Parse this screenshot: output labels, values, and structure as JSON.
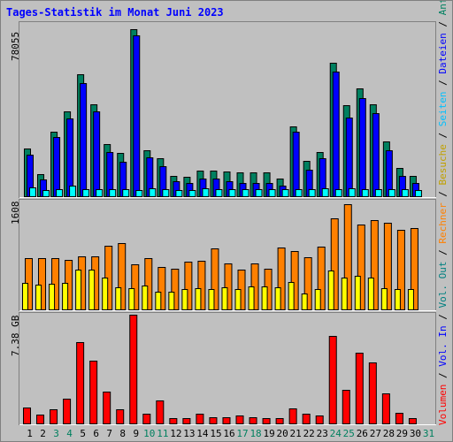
{
  "chart_data": {
    "type": "bar",
    "title": "Tages-Statistik im Monat Juni 2023",
    "categories": [
      "1",
      "2",
      "3",
      "4",
      "5",
      "6",
      "7",
      "8",
      "9",
      "10",
      "11",
      "12",
      "13",
      "14",
      "15",
      "16",
      "17",
      "18",
      "19",
      "20",
      "21",
      "22",
      "23",
      "24",
      "25",
      "26",
      "27",
      "28",
      "29",
      "30",
      "31"
    ],
    "weekend_days": [
      "3",
      "4",
      "10",
      "11",
      "17",
      "18",
      "24",
      "25",
      "31"
    ],
    "panels": [
      {
        "name": "hits",
        "y_max_label": "78055",
        "ylim": [
          0,
          78055
        ],
        "series": [
          {
            "name": "Anfragen",
            "color": "#008060",
            "values": [
              22000,
              10500,
              29500,
              38500,
              55500,
              42000,
              24000,
              20000,
              75500,
              21000,
              17500,
              9500,
              9000,
              12000,
              12000,
              11500,
              11000,
              11000,
              11000,
              8500,
              32000,
              16500,
              20500,
              60500,
              41500,
              49000,
              42000,
              25000,
              13000,
              9500,
              0
            ]
          },
          {
            "name": "Dateien",
            "color": "#0000ff",
            "values": [
              19000,
              8000,
              27000,
              35500,
              51500,
              38500,
              20500,
              16000,
              73000,
              18000,
              14000,
              7000,
              6500,
              8500,
              8500,
              7000,
              6500,
              6500,
              6500,
              5000,
              29500,
              12500,
              17500,
              56500,
              36000,
              44500,
              38000,
              21000,
              9500,
              6500,
              0
            ]
          },
          {
            "name": "Seiten",
            "color": "#00ffff",
            "values": [
              4500,
              3000,
              3500,
              5000,
              3500,
              3500,
              3500,
              3500,
              3000,
              4000,
              3500,
              3000,
              3000,
              4000,
              3500,
              3500,
              3500,
              3500,
              3500,
              3500,
              3500,
              3500,
              4000,
              3500,
              4000,
              3500,
              3500,
              3500,
              3500,
              3000,
              0
            ]
          }
        ]
      },
      {
        "name": "visits",
        "y_max_label": "1608",
        "ylim": [
          0,
          1608
        ],
        "series": [
          {
            "name": "Rechner",
            "color": "#ff8000",
            "values": [
              775,
              775,
              775,
              740,
              800,
              800,
              960,
              1000,
              675,
              775,
              635,
              620,
              720,
              735,
              910,
              695,
              600,
              690,
              615,
              930,
              880,
              785,
              935,
              1355,
              1570,
              1270,
              1330,
              1300,
              1190,
              1220,
              0
            ]
          },
          {
            "name": "Besuche",
            "color": "#ffff00",
            "values": [
              405,
              380,
              395,
              405,
              605,
              595,
              480,
              335,
              325,
              370,
              270,
              270,
              320,
              325,
              320,
              345,
              320,
              350,
              355,
              340,
              420,
              250,
              310,
              585,
              490,
              510,
              480,
              325,
              310,
              310,
              0
            ]
          }
        ]
      },
      {
        "name": "volume",
        "y_max_label": "7.38 GB",
        "ylim": [
          0,
          7.38
        ],
        "series": [
          {
            "name": "Volumen",
            "color": "#ff0000",
            "values": [
              1.15,
              0.65,
              1.02,
              1.75,
              5.55,
              4.3,
              2.2,
              1.03,
              7.38,
              0.72,
              1.6,
              0.44,
              0.44,
              0.72,
              0.5,
              0.5,
              0.58,
              0.5,
              0.43,
              0.43,
              1.1,
              0.72,
              0.58,
              5.95,
              2.3,
              4.85,
              4.15,
              2.1,
              0.78,
              0.43,
              0
            ]
          }
        ]
      }
    ],
    "right_legend": [
      {
        "text": "Volumen",
        "color": "#ff0000"
      },
      {
        "text": " / ",
        "color": "#000000"
      },
      {
        "text": "Vol. In",
        "color": "#0000ff"
      },
      {
        "text": " / ",
        "color": "#000000"
      },
      {
        "text": "Vol. Out",
        "color": "#008080"
      },
      {
        "text": " / ",
        "color": "#000000"
      },
      {
        "text": "Rechner",
        "color": "#ff8000"
      },
      {
        "text": " / ",
        "color": "#000000"
      },
      {
        "text": "Besuche",
        "color": "#c0a000"
      },
      {
        "text": " / ",
        "color": "#000000"
      },
      {
        "text": "Seiten",
        "color": "#00c0ff"
      },
      {
        "text": " / ",
        "color": "#000000"
      },
      {
        "text": "Dateien",
        "color": "#0000ff"
      },
      {
        "text": " / ",
        "color": "#000000"
      },
      {
        "text": "Anfragen",
        "color": "#008060"
      }
    ],
    "colors": {
      "background": "#c0c0c0",
      "weekday_label": "#000000",
      "weekend_label": "#00805f"
    }
  }
}
